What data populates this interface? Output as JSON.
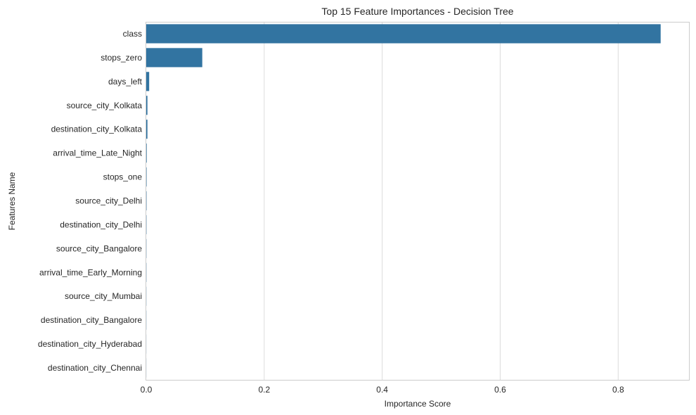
{
  "chart_data": {
    "type": "bar",
    "orientation": "horizontal",
    "title": "Top 15 Feature Importances - Decision Tree",
    "xlabel": "Importance Score",
    "ylabel": "Features Name",
    "xlim": [
      0,
      0.92
    ],
    "xticks": [
      0,
      0.2,
      0.4,
      0.6,
      0.8
    ],
    "xtick_labels": [
      "0.0",
      "0.2",
      "0.4",
      "0.6",
      "0.8"
    ],
    "grid": true,
    "bar_color": "#3274a1",
    "categories": [
      "class",
      "stops_zero",
      "days_left",
      "source_city_Kolkata",
      "destination_city_Kolkata",
      "arrival_time_Late_Night",
      "stops_one",
      "source_city_Delhi",
      "destination_city_Delhi",
      "source_city_Bangalore",
      "arrival_time_Early_Morning",
      "source_city_Mumbai",
      "destination_city_Bangalore",
      "destination_city_Hyderabad",
      "destination_city_Chennai"
    ],
    "values": [
      0.872,
      0.095,
      0.005,
      0.002,
      0.002,
      0.0008,
      0.0006,
      0.0005,
      0.0004,
      0.0003,
      0.0003,
      0.0002,
      0.0002,
      0.0001,
      0.0001
    ]
  }
}
